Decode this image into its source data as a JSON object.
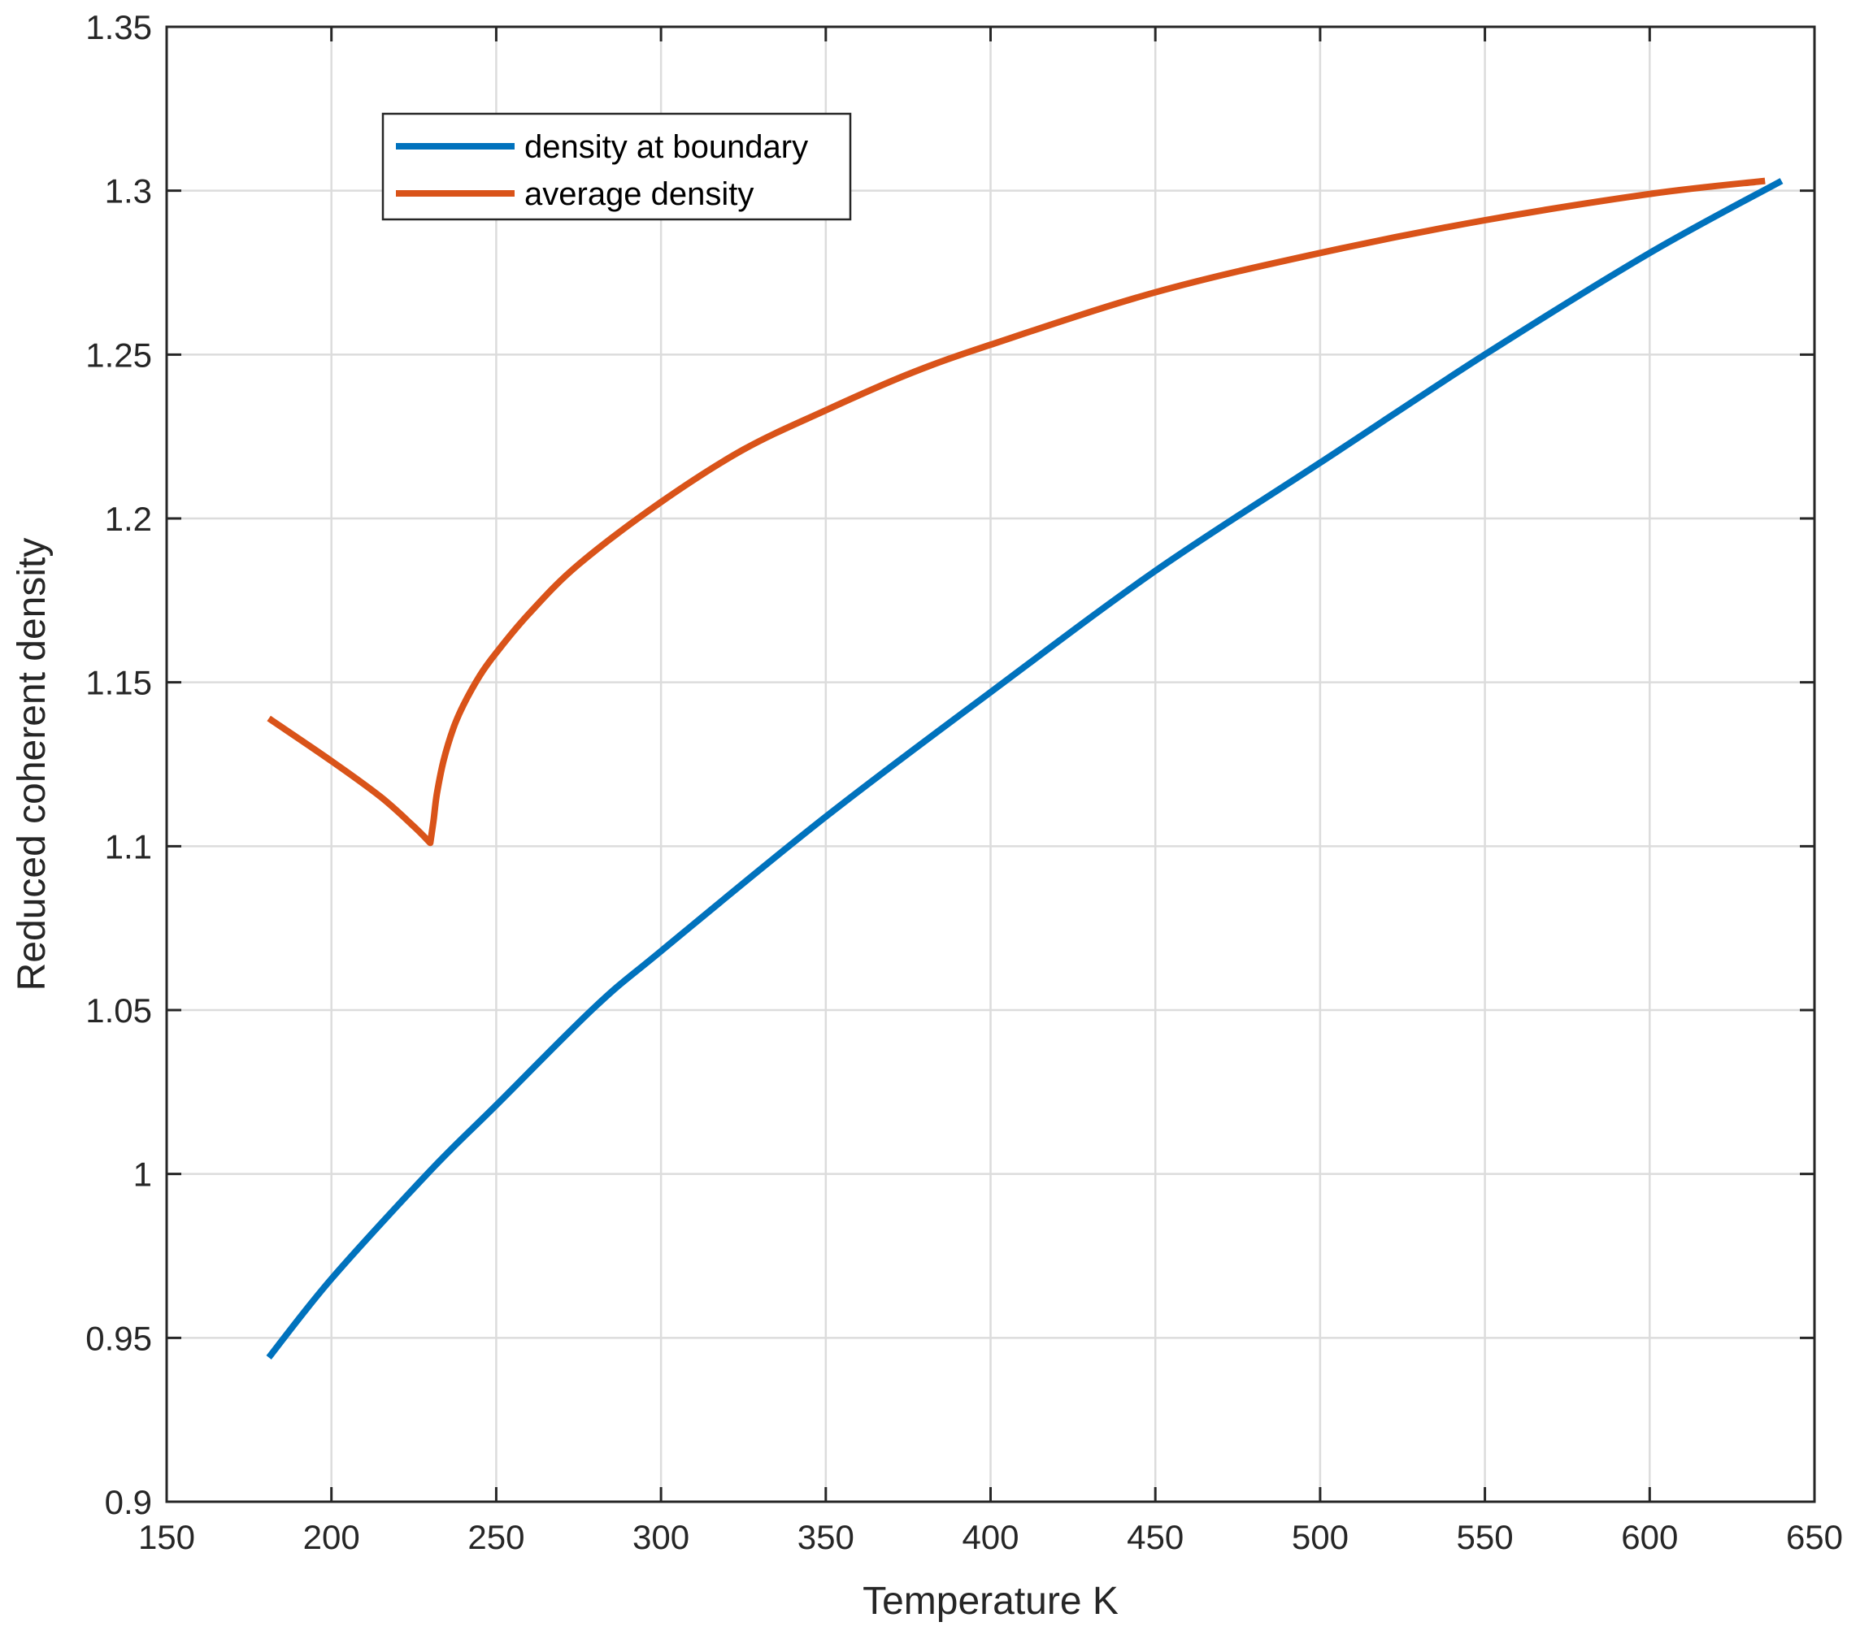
{
  "chart_data": {
    "type": "line",
    "title": "",
    "xlabel": "Temperature K",
    "ylabel": "Reduced coherent density",
    "xlim": [
      150,
      650
    ],
    "ylim": [
      0.9,
      1.35
    ],
    "xticks": [
      150,
      200,
      250,
      300,
      350,
      400,
      450,
      500,
      550,
      600,
      650
    ],
    "yticks": [
      0.9,
      0.95,
      1,
      1.05,
      1.1,
      1.15,
      1.2,
      1.25,
      1.3,
      1.35
    ],
    "xtick_labels": [
      "150",
      "200",
      "250",
      "300",
      "350",
      "400",
      "450",
      "500",
      "550",
      "600",
      "650"
    ],
    "ytick_labels": [
      "0.9",
      "0.95",
      "1",
      "1.05",
      "1.1",
      "1.15",
      "1.2",
      "1.25",
      "1.3",
      "1.35"
    ],
    "grid": true,
    "legend_position": "top-left",
    "series": [
      {
        "name": "density at boundary",
        "color": "#0072BD",
        "x": [
          181,
          200,
          230,
          250,
          280,
          300,
          350,
          400,
          450,
          500,
          550,
          600,
          640
        ],
        "y": [
          0.944,
          0.968,
          1.001,
          1.021,
          1.051,
          1.068,
          1.109,
          1.147,
          1.184,
          1.217,
          1.25,
          1.281,
          1.303
        ]
      },
      {
        "name": "average density",
        "color": "#D95319",
        "x": [
          181,
          200,
          215,
          225,
          230,
          231,
          232,
          234,
          237,
          240,
          245,
          250,
          260,
          275,
          300,
          325,
          350,
          375,
          400,
          450,
          500,
          550,
          600,
          635
        ],
        "y": [
          1.139,
          1.126,
          1.115,
          1.106,
          1.101,
          1.108,
          1.116,
          1.126,
          1.136,
          1.143,
          1.152,
          1.159,
          1.171,
          1.186,
          1.205,
          1.221,
          1.233,
          1.244,
          1.253,
          1.269,
          1.281,
          1.291,
          1.299,
          1.303
        ]
      }
    ]
  }
}
